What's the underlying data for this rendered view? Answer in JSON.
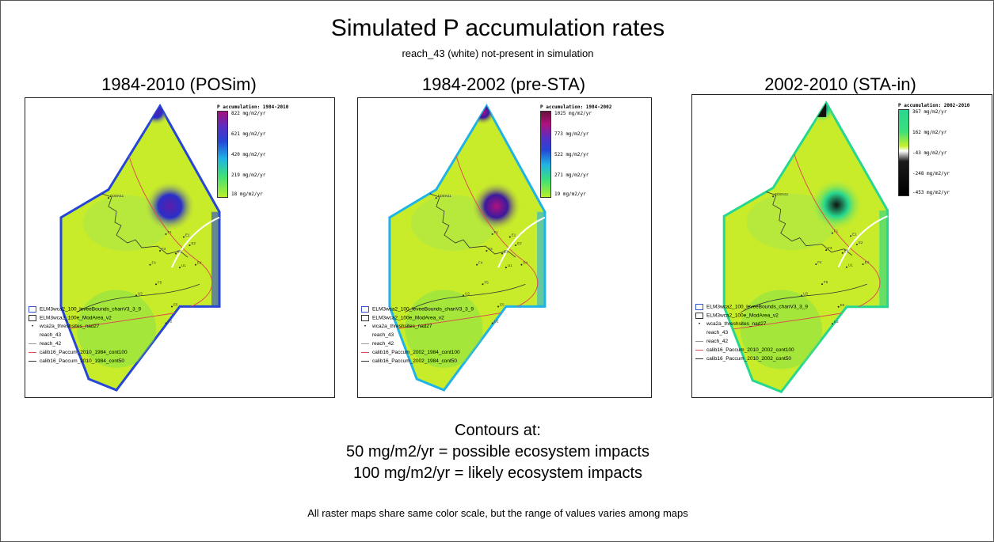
{
  "title": "Simulated P accumulation rates",
  "subtitle": "reach_43 (white) not-present in simulation",
  "panels": [
    {
      "heading": "1984-2010 (POSim)",
      "legend_title": "P accumulation: 1984-2010",
      "ticks": [
        "822 mg/m2/yr",
        "621 mg/m2/yr",
        "420 mg/m2/yr",
        "219 mg/m2/yr",
        "18 mg/m2/yr"
      ],
      "layers": [
        "ELM3wca2_100_leveeBounds_chanV3_3_9",
        "ELM3wca2_100e_ModArea_v2",
        "wca2a_threshsites_nad27",
        "reach_43",
        "reach_42",
        "calib16_Paccum_2010_1984_cont100",
        "calib16_Paccum_2010_1984_cont50"
      ]
    },
    {
      "heading": "1984-2002 (pre-STA)",
      "legend_title": "P accumulation: 1984-2002",
      "ticks": [
        "1025 mg/m2/yr",
        "773 mg/m2/yr",
        "522 mg/m2/yr",
        "271 mg/m2/yr",
        "19 mg/m2/yr"
      ],
      "layers": [
        "ELM3wca2_100_leveeBounds_chanV3_3_9",
        "ELM3wca2_100e_ModArea_v2",
        "wca2a_threshsites_nad27",
        "reach_43",
        "reach_42",
        "calib16_Paccum_2002_1984_cont100",
        "calib16_Paccum_2002_1984_cont50"
      ]
    },
    {
      "heading": "2002-2010 (STA-in)",
      "legend_title": "P accumulation: 2002-2010",
      "ticks": [
        "367 mg/m2/yr",
        "162 mg/m2/yr",
        "-43 mg/m2/yr",
        "-248 mg/m2/yr",
        "-453 mg/m2/yr"
      ],
      "layers": [
        "ELM3wca2_100_leveeBounds_chanV3_3_9",
        "ELM3wca2_100e_ModArea_v2",
        "wca2a_threshsites_nad27",
        "reach_43",
        "reach_42",
        "calib16_Paccum_2010_2002_cont100",
        "calib16_Paccum_2010_2002_cont50"
      ]
    }
  ],
  "site_labels": [
    "EDEN11",
    "E1",
    "F1",
    "E2",
    "F3",
    "E3",
    "F4",
    "U1",
    "E4",
    "F5",
    "E5",
    "U3",
    "U2"
  ],
  "contours": {
    "heading": "Contours at:",
    "line1": "50 mg/m2/yr = possible ecosystem impacts",
    "line2": "100 mg/m2/yr = likely ecosystem impacts"
  },
  "footnote": "All raster maps share same color scale, but the range of values varies among maps",
  "colors": {
    "map_fill": "#c9ec2a",
    "contour100": "#d9534f",
    "contour50": "#333333",
    "reach43": "#ffffff"
  }
}
